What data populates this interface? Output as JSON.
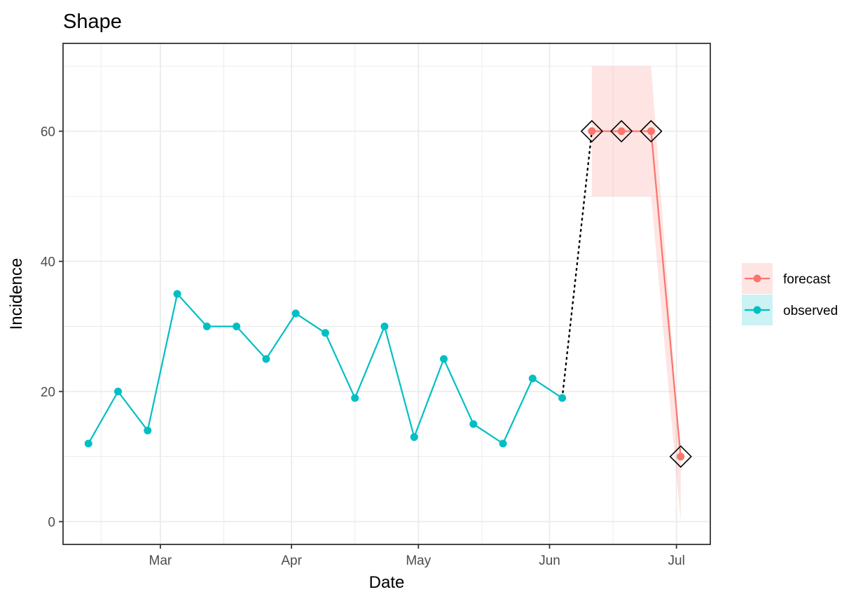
{
  "chart_data": {
    "type": "line",
    "title": "Shape",
    "xlabel": "Date",
    "ylabel": "Incidence",
    "x_ticks": [
      "Mar",
      "Apr",
      "May",
      "Jun",
      "Jul"
    ],
    "x_tick_dates": [
      "2023-03-01",
      "2023-04-01",
      "2023-05-01",
      "2023-06-01",
      "2023-07-01"
    ],
    "x_minor_dates": [
      "2023-02-15",
      "2023-03-16",
      "2023-04-16",
      "2023-05-16",
      "2023-06-16"
    ],
    "xlim": [
      "2023-02-06",
      "2023-07-09"
    ],
    "y_ticks": [
      0,
      20,
      40,
      60
    ],
    "y_minor": [
      10,
      30,
      50,
      70
    ],
    "ylim": [
      -3.5,
      73.5
    ],
    "grid": true,
    "legend_position": "right",
    "colors": {
      "forecast": "#F8766D",
      "observed": "#00BFC4",
      "band": "#F8766D",
      "connector": "#000000",
      "marker_outline": "#000000"
    },
    "series": [
      {
        "name": "observed",
        "x": [
          "2023-02-12",
          "2023-02-19",
          "2023-02-26",
          "2023-03-05",
          "2023-03-12",
          "2023-03-19",
          "2023-03-26",
          "2023-04-02",
          "2023-04-09",
          "2023-04-16",
          "2023-04-23",
          "2023-04-30",
          "2023-05-07",
          "2023-05-14",
          "2023-05-21",
          "2023-05-28",
          "2023-06-04"
        ],
        "values": [
          12,
          20,
          14,
          35,
          30,
          30,
          25,
          32,
          29,
          19,
          30,
          13,
          25,
          15,
          12,
          22,
          19
        ]
      },
      {
        "name": "forecast",
        "x": [
          "2023-06-11",
          "2023-06-18",
          "2023-06-25",
          "2023-07-02"
        ],
        "values": [
          60,
          60,
          60,
          10
        ],
        "lower": [
          50,
          50,
          50,
          0
        ],
        "upper": [
          70,
          70,
          70,
          10
        ]
      }
    ],
    "connector": {
      "from": [
        "2023-06-04",
        19
      ],
      "to": [
        "2023-06-11",
        60
      ],
      "style": "dotted"
    },
    "highlight_markers": {
      "shape": "diamond",
      "x": [
        "2023-06-11",
        "2023-06-18",
        "2023-06-25",
        "2023-07-02"
      ],
      "values": [
        60,
        60,
        60,
        10
      ]
    }
  }
}
